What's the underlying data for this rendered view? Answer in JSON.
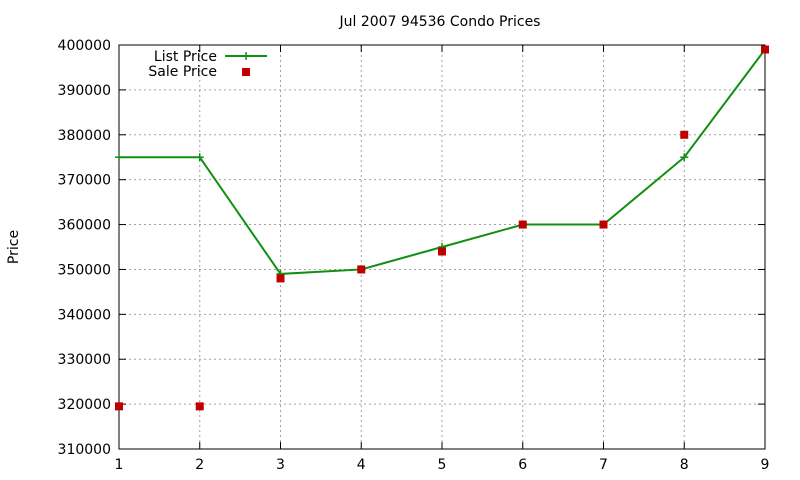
{
  "chart_data": {
    "type": "line",
    "title": "Jul 2007 94536 Condo Prices",
    "xlabel": "",
    "ylabel": "Price",
    "xlim": [
      1,
      9
    ],
    "ylim": [
      310000,
      400000
    ],
    "xticks": [
      1,
      2,
      3,
      4,
      5,
      6,
      7,
      8,
      9
    ],
    "yticks": [
      310000,
      320000,
      330000,
      340000,
      350000,
      360000,
      370000,
      380000,
      390000,
      400000
    ],
    "grid": true,
    "legend_position": "top-left",
    "series": [
      {
        "name": "List Price",
        "style": "line-with-plus-markers",
        "color": "#109010",
        "x": [
          1,
          2,
          3,
          4,
          5,
          6,
          7,
          8,
          9
        ],
        "values": [
          375000,
          375000,
          349000,
          350000,
          355000,
          360000,
          360000,
          375000,
          399000
        ]
      },
      {
        "name": "Sale Price",
        "style": "square-markers",
        "color": "#c00000",
        "x": [
          1,
          2,
          3,
          4,
          5,
          6,
          7,
          8,
          9
        ],
        "values": [
          319500,
          319500,
          348000,
          350000,
          354000,
          360000,
          360000,
          380000,
          399000
        ]
      }
    ]
  }
}
